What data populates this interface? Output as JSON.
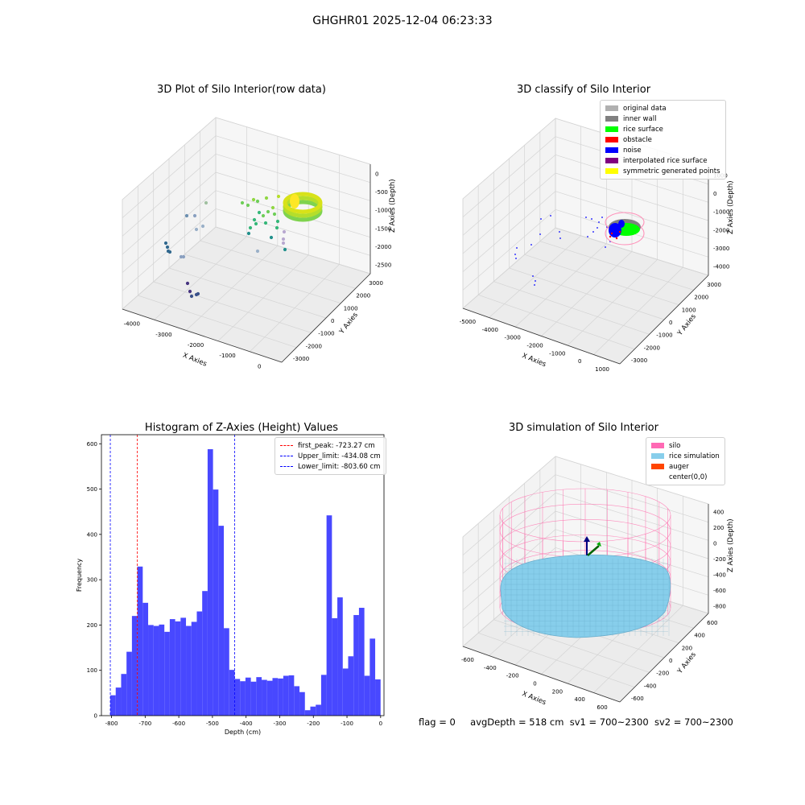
{
  "suptitle": "GHGHR01 2025-12-04 06:23:33",
  "status_line": {
    "flag": "flag = 0",
    "avg_depth": "avgDepth = 518 cm",
    "sv1": "sv1 = 700~2300",
    "sv2": "sv2 = 700~2300"
  },
  "chart_data": [
    {
      "type": "scatter3d",
      "title": "3D Plot of Silo Interior(row data)",
      "xlabel": "X Axies",
      "ylabel": "Y Axies",
      "zlabel": "Z Axies (Depth)",
      "x_ticks": [
        "-4000",
        "-3000",
        "-2000",
        "-1000",
        "0"
      ],
      "y_ticks": [
        "3000",
        "2000",
        "1000",
        "0",
        "-1000",
        "-2000",
        "-3000"
      ],
      "z_ticks": [
        "0",
        "-500",
        "-1000",
        "-1500",
        "-2000",
        "-2500"
      ],
      "colormap": "viridis"
    },
    {
      "type": "scatter3d",
      "title": "3D classify of Silo Interior",
      "xlabel": "X Axies",
      "ylabel": "Y Axies",
      "zlabel": "Z Axies (Depth)",
      "x_ticks": [
        "-5000",
        "-4000",
        "-3000",
        "-2000",
        "-1000",
        "0",
        "1000"
      ],
      "y_ticks": [
        "3000",
        "2000",
        "1000",
        "0",
        "-1000",
        "-2000",
        "-3000"
      ],
      "z_ticks": [
        "1000",
        "0",
        "-1000",
        "-2000",
        "-3000",
        "-4000"
      ],
      "legend": [
        {
          "label": "original data",
          "color": "#b0b0b0"
        },
        {
          "label": "inner wall",
          "color": "#808080"
        },
        {
          "label": "rice surface",
          "color": "#00ff00"
        },
        {
          "label": "obstacle",
          "color": "#ff0000"
        },
        {
          "label": "noise",
          "color": "#0000ff"
        },
        {
          "label": "interpolated rice surface",
          "color": "#800080"
        },
        {
          "label": "symmetric generated points",
          "color": "#ffff00"
        }
      ],
      "legend_position": "top-right"
    },
    {
      "type": "bar",
      "title": "Histogram of Z-Axies (Height) Values",
      "xlabel": "Depth (cm)",
      "ylabel": "Frequency",
      "xlim": [
        -830,
        10
      ],
      "ylim": [
        0,
        620
      ],
      "x_ticks": [
        -800,
        -700,
        -600,
        -500,
        -400,
        -300,
        -200,
        -100,
        0
      ],
      "y_ticks": [
        0,
        100,
        200,
        300,
        400,
        500,
        600
      ],
      "bin_start": -803.6,
      "bin_width": 16.07,
      "values": [
        45,
        62,
        92,
        141,
        220,
        329,
        249,
        200,
        198,
        201,
        185,
        213,
        208,
        216,
        198,
        207,
        230,
        275,
        588,
        499,
        419,
        193,
        101,
        81,
        76,
        84,
        75,
        85,
        79,
        77,
        83,
        82,
        88,
        89,
        65,
        52,
        12,
        20,
        24,
        90,
        442,
        215,
        261,
        104,
        131,
        222,
        238,
        88,
        170,
        80
      ],
      "bar_color": "#4848ff",
      "vlines": [
        {
          "label": "first_peak: -723.27 cm",
          "x": -723.27,
          "color": "#ff0000"
        },
        {
          "label": "Upper_limit: -434.08 cm",
          "x": -434.08,
          "color": "#0000ff"
        },
        {
          "label": "Lower_limit: -803.60 cm",
          "x": -803.6,
          "color": "#0000ff"
        }
      ],
      "legend_position": "top-right"
    },
    {
      "type": "surface3d",
      "title": "3D simulation of Silo Interior",
      "xlabel": "X Axies",
      "ylabel": "Y Axies",
      "zlabel": "Z Axies (Depth)",
      "x_ticks": [
        "-600",
        "-400",
        "-200",
        "0",
        "200",
        "400",
        "600"
      ],
      "y_ticks": [
        "600",
        "400",
        "200",
        "0",
        "-200",
        "-400",
        "-600"
      ],
      "z_ticks": [
        "400",
        "200",
        "0",
        "-200",
        "-400",
        "-600",
        "-800"
      ],
      "legend": [
        {
          "label": "silo",
          "color": "#ff69b4"
        },
        {
          "label": "rice simulation",
          "color": "#87ceeb"
        },
        {
          "label": "auger",
          "color": "#ff4500"
        },
        {
          "label": "center(0,0)",
          "color": "#ffffff"
        }
      ],
      "legend_position": "top-right"
    }
  ]
}
